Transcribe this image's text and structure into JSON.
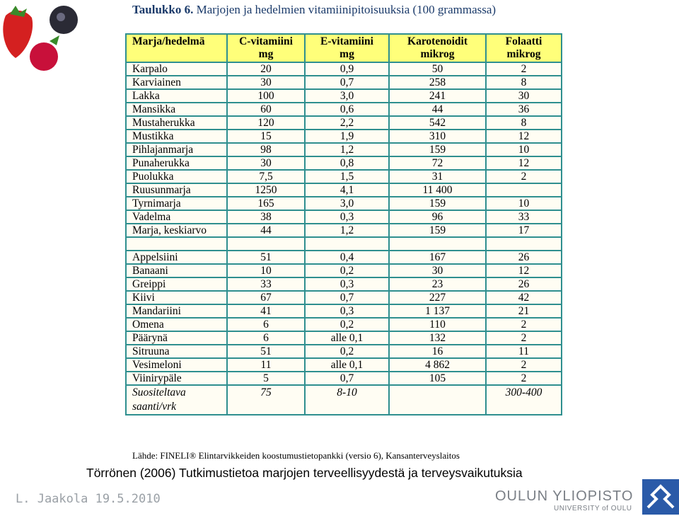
{
  "header": {
    "title_bold": "Taulukko 6.",
    "title": "Marjojen ja hedelmien vitamiinipitoisuuksia (100 grammassa)"
  },
  "table": {
    "columns": [
      {
        "name": "Marja/hedelmä",
        "unit": null
      },
      {
        "name": "C-vitamiini",
        "unit": "mg"
      },
      {
        "name": "E-vitamiini",
        "unit": "mg"
      },
      {
        "name": "Karotenoidit",
        "unit": "mikrog"
      },
      {
        "name": "Folaatti",
        "unit": "mikrog"
      }
    ],
    "berries": [
      [
        "Karpalo",
        "20",
        "0,9",
        "50",
        "2"
      ],
      [
        "Karviainen",
        "30",
        "0,7",
        "258",
        "8"
      ],
      [
        "Lakka",
        "100",
        "3,0",
        "241",
        "30"
      ],
      [
        "Mansikka",
        "60",
        "0,6",
        "44",
        "36"
      ],
      [
        "Mustaherukka",
        "120",
        "2,2",
        "542",
        "8"
      ],
      [
        "Mustikka",
        "15",
        "1,9",
        "310",
        "12"
      ],
      [
        "Pihlajanmarja",
        "98",
        "1,2",
        "159",
        "10"
      ],
      [
        "Punaherukka",
        "30",
        "0,8",
        "72",
        "12"
      ],
      [
        "Puolukka",
        "7,5",
        "1,5",
        "31",
        "2"
      ],
      [
        "Ruusunmarja",
        "1250",
        "4,1",
        "11 400",
        null
      ],
      [
        "Tyrnimarja",
        "165",
        "3,0",
        "159",
        "10"
      ],
      [
        "Vadelma",
        "38",
        "0,3",
        "96",
        "33"
      ],
      [
        "Marja, keskiarvo",
        "44",
        "1,2",
        "159",
        "17"
      ]
    ],
    "fruits": [
      [
        "Appelsiini",
        "51",
        "0,4",
        "167",
        "26"
      ],
      [
        "Banaani",
        "10",
        "0,2",
        "30",
        "12"
      ],
      [
        "Greippi",
        "33",
        "0,3",
        "23",
        "26"
      ],
      [
        "Kiivi",
        "67",
        "0,7",
        "227",
        "42"
      ],
      [
        "Mandariini",
        "41",
        "0,3",
        "1 137",
        "21"
      ],
      [
        "Omena",
        "6",
        "0,2",
        "110",
        "2"
      ],
      [
        "Päärynä",
        "6",
        "alle 0,1",
        "132",
        "2"
      ],
      [
        "Sitruuna",
        "51",
        "0,2",
        "16",
        "11"
      ],
      [
        "Vesimeloni",
        "11",
        "alle 0,1",
        "4 862",
        "2"
      ],
      [
        "Viinirypäle",
        "5",
        "0,7",
        "105",
        "2"
      ]
    ],
    "recommended": [
      "Suositeltava saanti/vrk",
      "75",
      "8-10",
      null,
      "300-400"
    ]
  },
  "source": "Lähde: FINELI® Elintarvikkeiden koostumustietopankki (versio 6), Kansanterveyslaitos",
  "caption": "Törrönen (2006) Tutkimustietoa marjojen terveellisyydestä ja terveysvaikutuksia",
  "footer": {
    "author": "L. Jaakola 19.5.2010",
    "university": "OULUN YLIOPISTO",
    "university_en": "UNIVERSITY of OULU"
  }
}
